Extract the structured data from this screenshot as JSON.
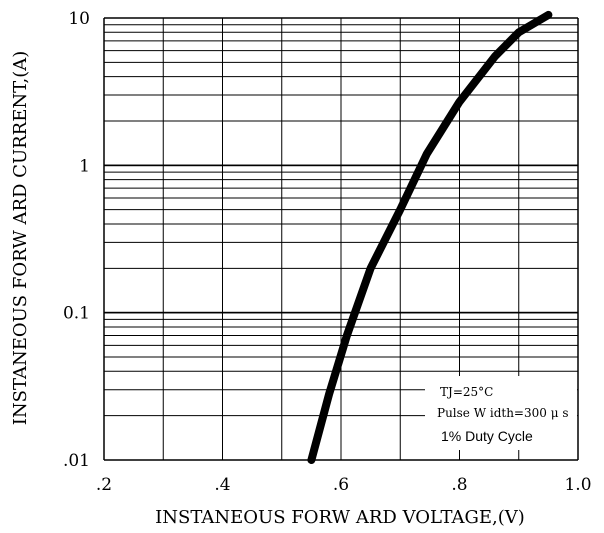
{
  "chart_data": {
    "type": "line",
    "xlabel": "INSTANEOUS FORW ARD VOLTAGE,(V)",
    "ylabel": "INSTANEOUS FORW ARD CURRENT,(A)",
    "xlim": [
      0.2,
      1.0
    ],
    "ylim": [
      0.01,
      10
    ],
    "y_scale": "log",
    "x_ticks": [
      ".2",
      ".4",
      ".6",
      ".8",
      "1.0"
    ],
    "y_ticks": [
      "10",
      "1",
      "0.1",
      ".01"
    ],
    "grid": true,
    "series": [
      {
        "x": [
          0.55,
          0.58,
          0.61,
          0.65,
          0.7,
          0.745,
          0.8,
          0.86,
          0.9,
          0.95
        ],
        "y": [
          0.01,
          0.028,
          0.07,
          0.2,
          0.5,
          1.2,
          2.7,
          5.5,
          8.0,
          10.5
        ],
        "color": "#000000"
      }
    ],
    "annotations": [
      "TJ=25°C",
      "Pulse W idth=300 μ s",
      "1% Duty Cycle"
    ]
  }
}
